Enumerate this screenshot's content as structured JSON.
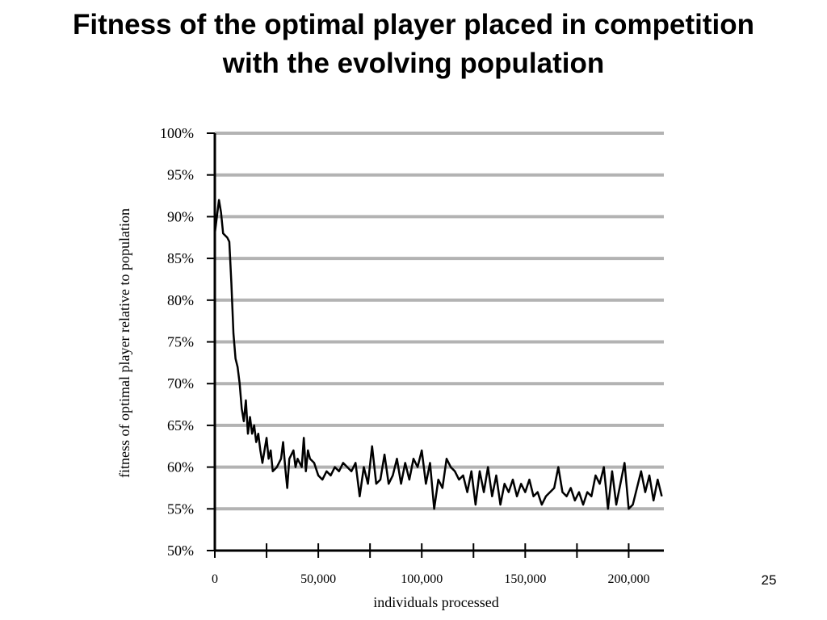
{
  "chart_data": {
    "type": "line",
    "title": [
      "Fitness of the optimal player placed in competition",
      "with the evolving population"
    ],
    "x_label": "individuals processed",
    "y_label": "fitness of optimal player relative to population",
    "page_number": "25",
    "xlim": [
      0,
      217000
    ],
    "xticks": [
      {
        "value": 0,
        "label": "0"
      },
      {
        "value": 50000,
        "label": "50,000"
      },
      {
        "value": 100000,
        "label": "100,000"
      },
      {
        "value": 150000,
        "label": "150,000"
      },
      {
        "value": 200000,
        "label": "200,000"
      }
    ],
    "xminorticks": [
      25000,
      75000,
      125000,
      175000
    ],
    "ylim": [
      50,
      100
    ],
    "yticks": [
      {
        "value": 50,
        "label": "50%"
      },
      {
        "value": 55,
        "label": "55%"
      },
      {
        "value": 60,
        "label": "60%"
      },
      {
        "value": 65,
        "label": "65%"
      },
      {
        "value": 70,
        "label": "70%"
      },
      {
        "value": 75,
        "label": "75%"
      },
      {
        "value": 80,
        "label": "80%"
      },
      {
        "value": 85,
        "label": "85%"
      },
      {
        "value": 90,
        "label": "90%"
      },
      {
        "value": 95,
        "label": "95%"
      },
      {
        "value": 100,
        "label": "100%"
      }
    ],
    "grid": true,
    "grid_color": "#b3b3b3",
    "x": [
      0,
      2000,
      3000,
      4000,
      6000,
      7000,
      8000,
      9000,
      10000,
      11000,
      12000,
      13000,
      14000,
      15000,
      16000,
      17000,
      18000,
      19000,
      20000,
      21000,
      22000,
      23000,
      24000,
      25000,
      26000,
      27000,
      28000,
      30000,
      32000,
      33000,
      34000,
      35000,
      36000,
      38000,
      39000,
      40000,
      42000,
      43000,
      44000,
      45000,
      46000,
      48000,
      50000,
      52000,
      54000,
      56000,
      58000,
      60000,
      62000,
      64000,
      66000,
      68000,
      70000,
      72000,
      74000,
      76000,
      78000,
      80000,
      82000,
      84000,
      86000,
      88000,
      90000,
      92000,
      94000,
      96000,
      98000,
      100000,
      102000,
      104000,
      106000,
      108000,
      110000,
      112000,
      114000,
      116000,
      118000,
      120000,
      122000,
      124000,
      126000,
      128000,
      130000,
      132000,
      134000,
      136000,
      138000,
      140000,
      142000,
      144000,
      146000,
      148000,
      150000,
      152000,
      154000,
      156000,
      158000,
      160000,
      162000,
      164000,
      166000,
      168000,
      170000,
      172000,
      174000,
      176000,
      178000,
      180000,
      182000,
      184000,
      186000,
      188000,
      190000,
      192000,
      194000,
      196000,
      198000,
      200000,
      202000,
      204000,
      206000,
      208000,
      210000,
      212000,
      214000,
      216000
    ],
    "series": [
      {
        "name": "fitness",
        "color": "#000000",
        "values": [
          88,
          92,
          90.5,
          88,
          87.5,
          87,
          82,
          76,
          73,
          72,
          70,
          67,
          65.5,
          68,
          64,
          66,
          64,
          65,
          63,
          64,
          62,
          60.5,
          62,
          63.5,
          61,
          62,
          59.5,
          60,
          61,
          63,
          60,
          57.5,
          61,
          62,
          60,
          61,
          60,
          63.5,
          59.5,
          62,
          61,
          60.5,
          59,
          58.5,
          59.5,
          59,
          60,
          59.5,
          60.5,
          60,
          59.5,
          60.5,
          56.5,
          60,
          58,
          62.5,
          58,
          58.5,
          61.5,
          58,
          59,
          61,
          58,
          60.5,
          58.5,
          61,
          60,
          62,
          58,
          60.5,
          55,
          58.5,
          57.5,
          61,
          60,
          59.5,
          58.5,
          59,
          57,
          59.5,
          55.5,
          59.5,
          57,
          60,
          56.5,
          59,
          55.5,
          58,
          57,
          58.5,
          56.5,
          58,
          57,
          58.5,
          56.5,
          57,
          55.5,
          56.5,
          57,
          57.5,
          60,
          57,
          56.5,
          57.5,
          56,
          57,
          55.5,
          57,
          56.5,
          59,
          58,
          60,
          55,
          59.5,
          55.5,
          58,
          60.5,
          55,
          55.5,
          57.5,
          59.5,
          57,
          59,
          56,
          58.5,
          56.5
        ]
      }
    ]
  }
}
